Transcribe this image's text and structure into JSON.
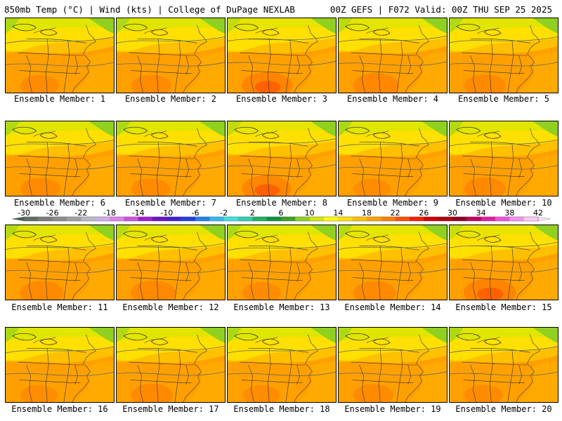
{
  "header": {
    "left": "850mb Temp (°C) | Wind (kts) | College of DuPage NEXLAB",
    "right": "00Z GEFS | F072 Valid: 00Z THU SEP 25 2025"
  },
  "colorbar": {
    "labels": [
      "-30",
      "-26",
      "-22",
      "-18",
      "-14",
      "-10",
      "-6",
      "-2",
      "2",
      "6",
      "10",
      "14",
      "18",
      "22",
      "26",
      "30",
      "34",
      "38",
      "42"
    ],
    "colors": [
      "#5e6e62",
      "#7b7b7b",
      "#8c8c8c",
      "#a0a0a0",
      "#b8b8c8",
      "#c8b0e0",
      "#e080f0",
      "#d050e0",
      "#a020d0",
      "#7010c0",
      "#4020d0",
      "#2040e0",
      "#2080f0",
      "#30b8f0",
      "#40e0e0",
      "#30d0b0",
      "#20b060",
      "#109040",
      "#40a020",
      "#90d020",
      "#d0e800",
      "#ffff00",
      "#ffe000",
      "#ffc000",
      "#ffa000",
      "#ff8000",
      "#ff5000",
      "#f02000",
      "#d00000",
      "#b00010",
      "#900020",
      "#c00060",
      "#e020a0",
      "#f050e0",
      "#f890f0",
      "#ffc8f8"
    ]
  },
  "members": [
    {
      "label": "Ensemble Member: 1",
      "warmth": 0.45
    },
    {
      "label": "Ensemble Member: 2",
      "warmth": 0.5
    },
    {
      "label": "Ensemble Member: 3",
      "warmth": 0.85
    },
    {
      "label": "Ensemble Member: 4",
      "warmth": 0.7
    },
    {
      "label": "Ensemble Member: 5",
      "warmth": 0.55
    },
    {
      "label": "Ensemble Member: 6",
      "warmth": 0.5
    },
    {
      "label": "Ensemble Member: 7",
      "warmth": 0.45
    },
    {
      "label": "Ensemble Member: 8",
      "warmth": 0.8
    },
    {
      "label": "Ensemble Member: 9",
      "warmth": 0.4
    },
    {
      "label": "Ensemble Member: 10",
      "warmth": 0.55
    },
    {
      "label": "Ensemble Member: 11",
      "warmth": 0.6
    },
    {
      "label": "Ensemble Member: 12",
      "warmth": 0.65
    },
    {
      "label": "Ensemble Member: 13",
      "warmth": 0.45
    },
    {
      "label": "Ensemble Member: 14",
      "warmth": 0.6
    },
    {
      "label": "Ensemble Member: 15",
      "warmth": 0.9
    },
    {
      "label": "Ensemble Member: 16",
      "warmth": 0.4
    },
    {
      "label": "Ensemble Member: 17",
      "warmth": 0.55
    },
    {
      "label": "Ensemble Member: 18",
      "warmth": 0.4
    },
    {
      "label": "Ensemble Member: 19",
      "warmth": 0.5
    },
    {
      "label": "Ensemble Member: 20",
      "warmth": 0.45
    }
  ]
}
